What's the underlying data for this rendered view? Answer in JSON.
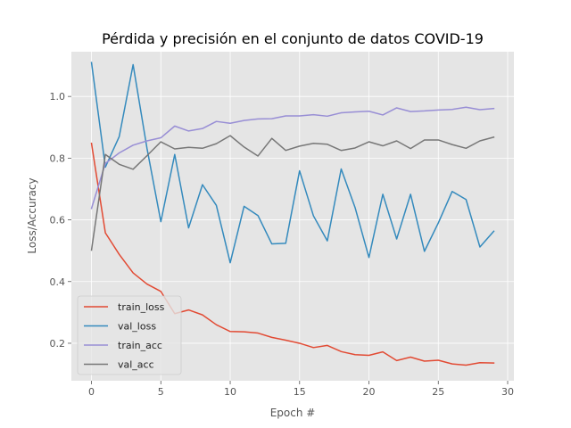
{
  "chart_data": {
    "type": "line",
    "title": "Pérdida y precisión en el conjunto de datos COVID-19",
    "xlabel": "Epoch #",
    "ylabel": "Loss/Accuracy",
    "xlim": [
      -1.45,
      30.45
    ],
    "ylim": [
      0.0785,
      1.145
    ],
    "xticks": [
      0,
      5,
      10,
      15,
      20,
      25,
      30
    ],
    "yticks": [
      0.2,
      0.4,
      0.6,
      0.8,
      1.0
    ],
    "xtick_labels": [
      "0",
      "5",
      "10",
      "15",
      "20",
      "25",
      "30"
    ],
    "ytick_labels": [
      "0.2",
      "0.4",
      "0.6",
      "0.8",
      "1.0"
    ],
    "grid": true,
    "legend_position": "lower-left",
    "x": [
      0,
      1,
      2,
      3,
      4,
      5,
      6,
      7,
      8,
      9,
      10,
      11,
      12,
      13,
      14,
      15,
      16,
      17,
      18,
      19,
      20,
      21,
      22,
      23,
      24,
      25,
      26,
      27,
      28,
      29
    ],
    "series": [
      {
        "name": "train_loss",
        "color": "#E24A33",
        "values": [
          0.848,
          0.558,
          0.488,
          0.428,
          0.392,
          0.368,
          0.296,
          0.308,
          0.292,
          0.26,
          0.238,
          0.237,
          0.233,
          0.219,
          0.21,
          0.2,
          0.186,
          0.193,
          0.173,
          0.163,
          0.161,
          0.172,
          0.144,
          0.155,
          0.142,
          0.145,
          0.133,
          0.129,
          0.137,
          0.136
        ]
      },
      {
        "name": "val_loss",
        "color": "#348ABD",
        "values": [
          1.11,
          0.771,
          0.87,
          1.103,
          0.832,
          0.594,
          0.812,
          0.574,
          0.714,
          0.647,
          0.461,
          0.644,
          0.614,
          0.522,
          0.524,
          0.759,
          0.613,
          0.532,
          0.765,
          0.64,
          0.478,
          0.683,
          0.538,
          0.683,
          0.498,
          0.59,
          0.692,
          0.666,
          0.512,
          0.563
        ]
      },
      {
        "name": "train_acc",
        "color": "#988ED5",
        "values": [
          0.637,
          0.783,
          0.817,
          0.842,
          0.856,
          0.866,
          0.904,
          0.888,
          0.896,
          0.919,
          0.913,
          0.922,
          0.927,
          0.928,
          0.937,
          0.937,
          0.941,
          0.936,
          0.947,
          0.95,
          0.952,
          0.94,
          0.963,
          0.951,
          0.953,
          0.956,
          0.958,
          0.965,
          0.957,
          0.961
        ]
      },
      {
        "name": "val_acc",
        "color": "#777777",
        "values": [
          0.502,
          0.812,
          0.78,
          0.764,
          0.808,
          0.853,
          0.83,
          0.835,
          0.832,
          0.847,
          0.873,
          0.836,
          0.807,
          0.864,
          0.825,
          0.839,
          0.848,
          0.845,
          0.825,
          0.833,
          0.853,
          0.84,
          0.856,
          0.831,
          0.859,
          0.859,
          0.844,
          0.832,
          0.856,
          0.868
        ]
      }
    ]
  }
}
